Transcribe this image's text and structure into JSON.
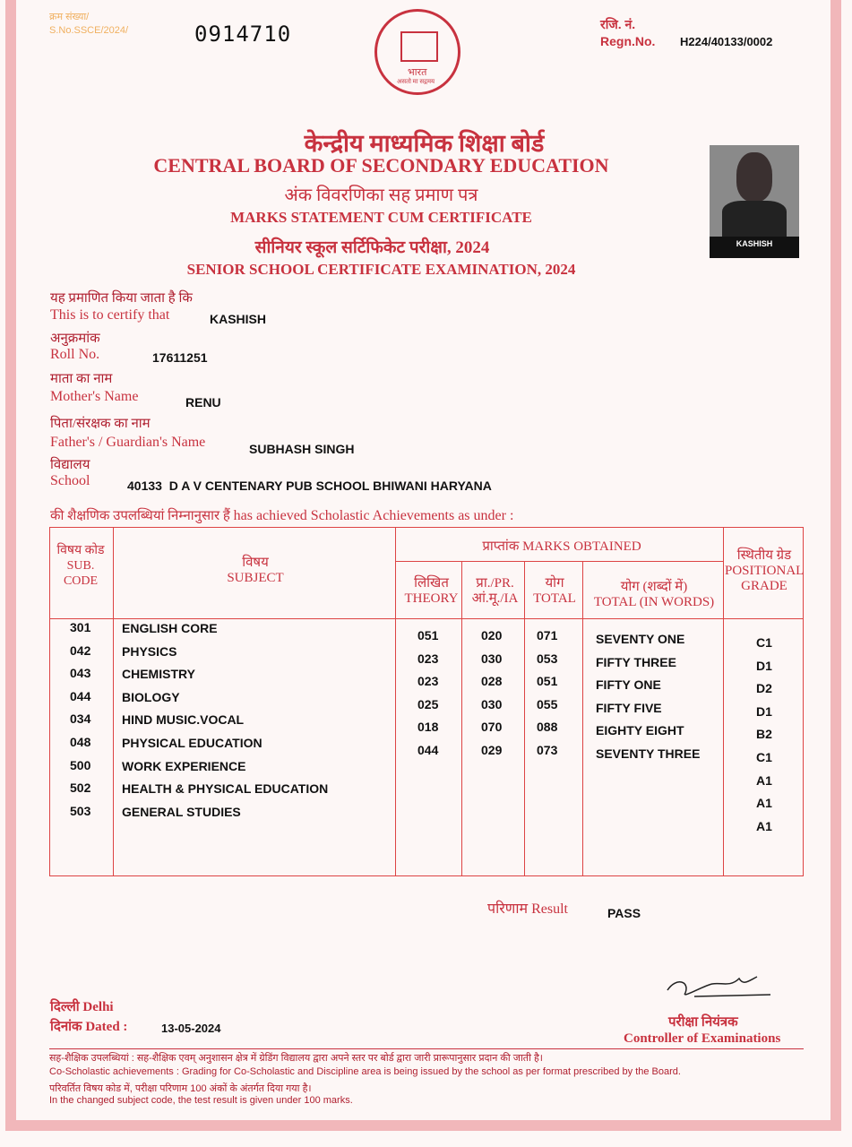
{
  "header": {
    "sno_label_hi": "क्रम संख्या/",
    "sno_label": "S.No.SSCE/2024/",
    "sno": "0914710",
    "regn_label_hi": "रजि. नं.",
    "regn_label": "Regn.No.",
    "regn": "H224/40133/0002"
  },
  "title": {
    "board_hi": "केन्द्रीय माध्यमिक शिक्षा बोर्ड",
    "board": "CENTRAL BOARD OF SECONDARY EDUCATION",
    "doc_hi": "अंक विवरणिका सह प्रमाण पत्र",
    "doc": "MARKS STATEMENT CUM CERTIFICATE",
    "exam_hi": "सीनियर स्कूल सर्टिफिकेट परीक्षा, 2024",
    "exam": "SENIOR SCHOOL CERTIFICATE EXAMINATION, 2024"
  },
  "logo": {
    "text": "भारत",
    "motto": "असतो मा सद्गमय"
  },
  "photo": {
    "name": "KASHISH"
  },
  "student": {
    "certify_hi": "यह प्रमाणित किया जाता है कि",
    "certify": "This is to certify that",
    "name": "KASHISH",
    "roll_hi": "अनुक्रमांक",
    "roll_label": "Roll No.",
    "roll": "17611251",
    "mother_hi": "माता का नाम",
    "mother_label": "Mother's Name",
    "mother": "RENU",
    "father_hi": "पिता/संरक्षक का नाम",
    "father_label": "Father's / Guardian's Name",
    "father": "SUBHASH SINGH",
    "school_hi": "विद्यालय",
    "school_label": "School",
    "school": "40133  D A V CENTENARY PUB SCHOOL BHIWANI HARYANA",
    "achieved_hi": "की शैक्षणिक उपलब्धियां निम्नानुसार हैं",
    "achieved": "has achieved Scholastic Achievements as under :"
  },
  "table": {
    "h_code_hi": "विषय कोड",
    "h_code": "SUB. CODE",
    "h_subject_hi": "विषय",
    "h_subject": "SUBJECT",
    "h_marks_hi": "प्राप्तांक",
    "h_marks": "MARKS OBTAINED",
    "h_theory_hi": "लिखित",
    "h_theory": "THEORY",
    "h_prac_1": "प्रा./PR.",
    "h_prac_2": "आं.मू./IA",
    "h_total_hi": "योग",
    "h_total": "TOTAL",
    "h_words_hi": "योग (शब्दों में)",
    "h_words": "TOTAL (IN WORDS)",
    "h_grade_hi": "स्थितीय ग्रेड",
    "h_grade": "POSITIONAL GRADE",
    "rows": [
      {
        "code": "301",
        "subject": "ENGLISH CORE",
        "theory": "051",
        "prac": "020",
        "total": "071",
        "words": "SEVENTY ONE",
        "grade": "C1"
      },
      {
        "code": "042",
        "subject": "PHYSICS",
        "theory": "023",
        "prac": "030",
        "total": "053",
        "words": "FIFTY THREE",
        "grade": "D1"
      },
      {
        "code": "043",
        "subject": "CHEMISTRY",
        "theory": "023",
        "prac": "028",
        "total": "051",
        "words": "FIFTY ONE",
        "grade": "D2"
      },
      {
        "code": "044",
        "subject": "BIOLOGY",
        "theory": "025",
        "prac": "030",
        "total": "055",
        "words": "FIFTY FIVE",
        "grade": "D1"
      },
      {
        "code": "034",
        "subject": "HIND MUSIC.VOCAL",
        "theory": "018",
        "prac": "070",
        "total": "088",
        "words": "EIGHTY EIGHT",
        "grade": "B2"
      },
      {
        "code": "048",
        "subject": "PHYSICAL EDUCATION",
        "theory": "044",
        "prac": "029",
        "total": "073",
        "words": "SEVENTY THREE",
        "grade": "C1"
      },
      {
        "code": "500",
        "subject": "WORK EXPERIENCE",
        "grade": "A1"
      },
      {
        "code": "502",
        "subject": "HEALTH & PHYSICAL EDUCATION",
        "grade": "A1"
      },
      {
        "code": "503",
        "subject": "GENERAL STUDIES",
        "grade": "A1"
      }
    ]
  },
  "result": {
    "label_hi": "परिणाम",
    "label": "Result",
    "value": "PASS"
  },
  "place": {
    "hi": "दिल्ली",
    "en": "Delhi",
    "date_label": "दिनांक Dated :",
    "date": "13-05-2024"
  },
  "controller": {
    "hi": "परीक्षा नियंत्रक",
    "en": "Controller of Examinations"
  },
  "footer": {
    "l1": "सह-शैक्षिक उपलब्धियां : सह-शैक्षिक एवम् अनुशासन क्षेत्र में ग्रेडिंग विद्यालय द्वारा अपने स्तर पर बोर्ड द्वारा जारी प्रारूपानुसार प्रदान की जाती है।",
    "l2": "Co-Scholastic achievements : Grading for Co-Scholastic and Discipline area is being issued by the school as per format prescribed by the Board.",
    "l3": "परिवर्तित विषय कोड में, परीक्षा परिणाम 100 अंकों के अंतर्गत दिया गया है।",
    "l4": "In the changed subject code, the test result is given under 100 marks."
  }
}
